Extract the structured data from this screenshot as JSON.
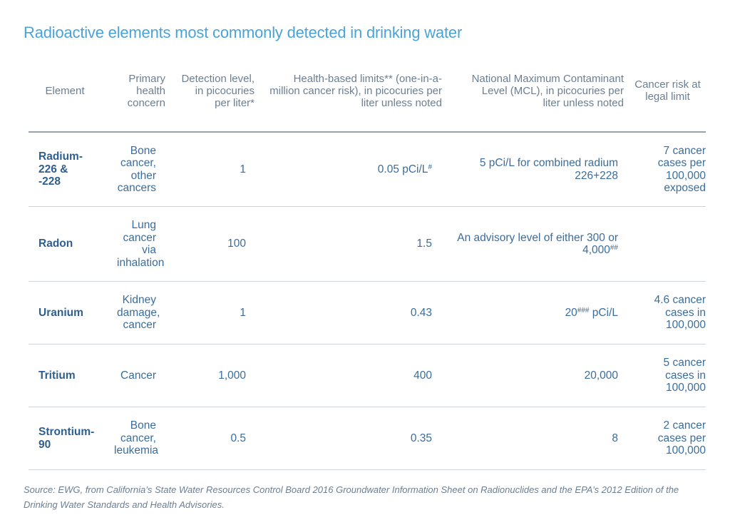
{
  "title": "Radioactive elements most commonly detected in drinking water",
  "headers": {
    "element": "Element",
    "concern": "Primary health concern",
    "detection": "Detection level, in picocuries per liter*",
    "health_limits": "Health-based limits** (one-in-a-million cancer risk), in picocuries per liter unless noted",
    "mcl": "National Maximum Contaminant Level (MCL), in picocuries per liter unless noted",
    "risk": "Cancer risk at legal limit"
  },
  "rows": [
    {
      "element": "Radium-226 & -228",
      "concern": "Bone cancer, other cancers",
      "detection": "1",
      "health_limit": "0.05 pCi/L",
      "health_limit_sup": "#",
      "mcl": "5 pCi/L for combined radium 226+228",
      "mcl_sup": "",
      "mcl_suffix": "",
      "risk": "7 cancer cases per 100,000 exposed"
    },
    {
      "element": "Radon",
      "concern": "Lung cancer via inhalation",
      "detection": "100",
      "health_limit": "1.5",
      "health_limit_sup": "",
      "mcl": "An advisory level of either 300 or 4,000",
      "mcl_sup": "##",
      "mcl_suffix": "",
      "risk": ""
    },
    {
      "element": "Uranium",
      "concern": "Kidney damage, cancer",
      "detection": "1",
      "health_limit": "0.43",
      "health_limit_sup": "",
      "mcl": "20",
      "mcl_sup": "###",
      "mcl_suffix": " pCi/L",
      "risk": "4.6 cancer cases in 100,000"
    },
    {
      "element": "Tritium",
      "concern": "Cancer",
      "detection": "1,000",
      "health_limit": "400",
      "health_limit_sup": "",
      "mcl": "20,000",
      "mcl_sup": "",
      "mcl_suffix": "",
      "risk": "5 cancer cases in 100,000"
    },
    {
      "element": "Strontium-90",
      "concern": "Bone cancer, leukemia",
      "detection": "0.5",
      "health_limit": "0.35",
      "health_limit_sup": "",
      "mcl": "8",
      "mcl_sup": "",
      "mcl_suffix": "",
      "risk": "2 cancer cases per 100,000"
    }
  ],
  "source": "Source: EWG, from California’s State Water Resources Control Board 2016 Groundwater Information Sheet on Radionuclides and the EPA’s 2012 Edition of the Drinking Water Standards and Health Advisories."
}
